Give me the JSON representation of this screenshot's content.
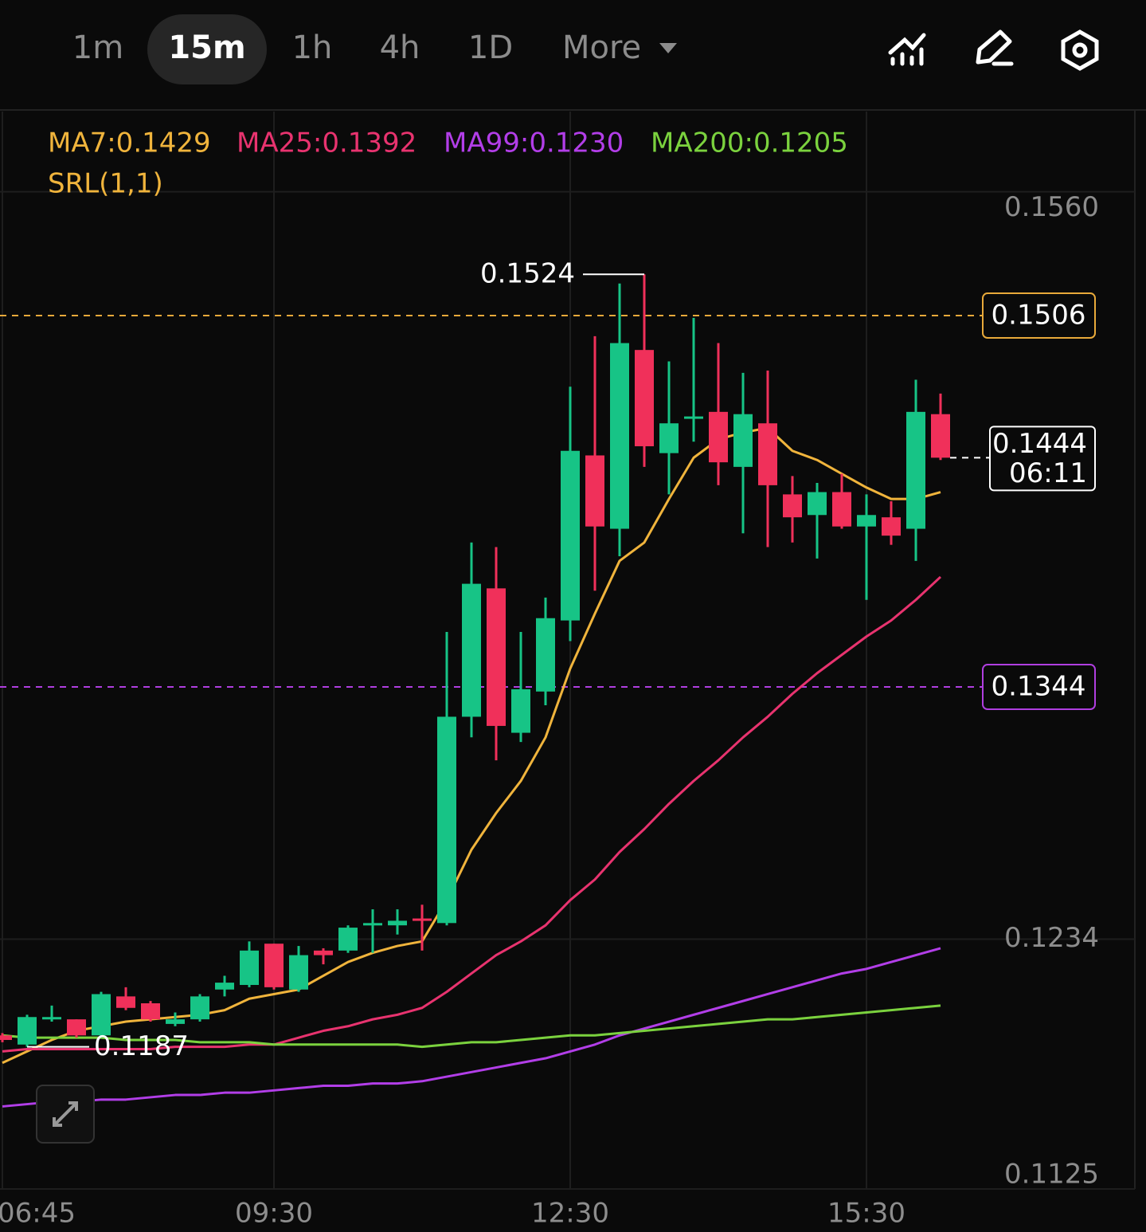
{
  "toolbar": {
    "tabs": [
      "1m",
      "15m",
      "1h",
      "4h",
      "1D",
      "More"
    ],
    "active": 1
  },
  "chart_data": {
    "type": "candlestick",
    "categories": [
      "06:45",
      null,
      null,
      null,
      null,
      null,
      null,
      null,
      null,
      null,
      null,
      "09:30",
      null,
      null,
      null,
      null,
      null,
      null,
      null,
      null,
      null,
      null,
      null,
      "12:30",
      null,
      null,
      null,
      null,
      null,
      null,
      null,
      null,
      null,
      null,
      null,
      "15:30",
      null,
      null,
      null
    ],
    "open": [
      0.1192,
      0.1188,
      0.1199,
      0.1199,
      0.1192,
      0.1209,
      0.1206,
      0.1197,
      0.1199,
      0.1212,
      0.1214,
      0.1232,
      0.1212,
      0.1229,
      0.1229,
      0.124,
      0.124,
      0.1243,
      0.1241,
      0.1331,
      0.1387,
      0.1324,
      0.1342,
      0.1373,
      0.1445,
      0.1413,
      0.1491,
      0.1446,
      0.1461,
      0.1464,
      0.144,
      0.1459,
      0.1428,
      0.1419,
      0.1429,
      0.1414,
      0.1418,
      0.1413,
      0.1463
    ],
    "high": [
      0.1193,
      0.1201,
      0.1205,
      0.1199,
      0.1211,
      0.1213,
      0.1207,
      0.1202,
      0.121,
      0.1218,
      0.1233,
      0.1232,
      0.1231,
      0.123,
      0.124,
      0.1247,
      0.1247,
      0.1249,
      0.1368,
      0.1407,
      0.1405,
      0.1368,
      0.1383,
      0.1475,
      0.1497,
      0.152,
      0.1524,
      0.1486,
      0.1505,
      0.1494,
      0.1481,
      0.1482,
      0.1436,
      0.1433,
      0.1437,
      0.1428,
      0.1425,
      0.1478,
      0.1472
    ],
    "low": [
      0.1189,
      0.1187,
      0.1198,
      0.1191,
      0.1191,
      0.1203,
      0.1198,
      0.1196,
      0.1198,
      0.1209,
      0.1213,
      0.1212,
      0.1211,
      0.1223,
      0.1228,
      0.1228,
      0.1236,
      0.1229,
      0.124,
      0.1322,
      0.1312,
      0.132,
      0.1336,
      0.1364,
      0.1386,
      0.1401,
      0.144,
      0.1428,
      0.1451,
      0.1432,
      0.1411,
      0.1405,
      0.1407,
      0.14,
      0.1413,
      0.1382,
      0.1406,
      0.1399,
      0.1443
    ],
    "close": [
      0.119,
      0.12,
      0.12,
      0.1192,
      0.121,
      0.1204,
      0.1199,
      0.1199,
      0.1209,
      0.1215,
      0.1229,
      0.1213,
      0.1227,
      0.1227,
      0.1239,
      0.1241,
      0.1242,
      0.1242,
      0.1331,
      0.1389,
      0.1327,
      0.1343,
      0.1374,
      0.1447,
      0.1414,
      0.1494,
      0.1449,
      0.1459,
      0.1462,
      0.1442,
      0.1463,
      0.1432,
      0.1418,
      0.1429,
      0.1414,
      0.1419,
      0.141,
      0.1464,
      0.1444
    ],
    "up_color": "#17c486",
    "down_color": "#f0305a",
    "series": [
      {
        "name": "MA7",
        "legend_label": "MA7:0.1429",
        "color": "#f0b43c",
        "values": [
          0.118,
          0.1185,
          0.119,
          0.1194,
          0.1196,
          0.1198,
          0.1199,
          0.12,
          0.1201,
          0.1203,
          0.1208,
          0.121,
          0.1212,
          0.1218,
          0.1224,
          0.1228,
          0.1231,
          0.1233,
          0.1251,
          0.1273,
          0.1289,
          0.1303,
          0.1322,
          0.1352,
          0.1376,
          0.1399,
          0.1407,
          0.1426,
          0.1444,
          0.1452,
          0.1455,
          0.1457,
          0.1447,
          0.1443,
          0.1437,
          0.1431,
          0.1426,
          0.1426,
          0.1429
        ]
      },
      {
        "name": "MA25",
        "legend_label": "MA25:0.1392",
        "color": "#e8336f",
        "values": [
          0.1185,
          0.1186,
          0.1186,
          0.1186,
          0.1186,
          0.1186,
          0.1186,
          0.1187,
          0.1187,
          0.1187,
          0.1188,
          0.1188,
          0.1191,
          0.1194,
          0.1196,
          0.1199,
          0.1201,
          0.1204,
          0.1211,
          0.1219,
          0.1227,
          0.1233,
          0.124,
          0.1251,
          0.126,
          0.1272,
          0.1282,
          0.1293,
          0.1303,
          0.1312,
          0.1322,
          0.1331,
          0.1341,
          0.135,
          0.1358,
          0.1366,
          0.1373,
          0.1382,
          0.1392
        ]
      },
      {
        "name": "MA99",
        "legend_label": "MA99:0.1230",
        "color": "#b23ee8",
        "values": [
          0.1161,
          0.1162,
          0.1163,
          0.1163,
          0.1164,
          0.1164,
          0.1165,
          0.1166,
          0.1166,
          0.1167,
          0.1167,
          0.1168,
          0.1169,
          0.117,
          0.117,
          0.1171,
          0.1171,
          0.1172,
          0.1174,
          0.1176,
          0.1178,
          0.118,
          0.1182,
          0.1185,
          0.1188,
          0.1192,
          0.1195,
          0.1198,
          0.1201,
          0.1204,
          0.1207,
          0.121,
          0.1213,
          0.1216,
          0.1219,
          0.1221,
          0.1224,
          0.1227,
          0.123
        ]
      },
      {
        "name": "MA200",
        "legend_label": "MA200:0.1205",
        "color": "#7bd23e",
        "values": [
          0.1192,
          0.1191,
          0.1191,
          0.1191,
          0.1191,
          0.119,
          0.119,
          0.119,
          0.1189,
          0.1189,
          0.1189,
          0.1188,
          0.1188,
          0.1188,
          0.1188,
          0.1188,
          0.1188,
          0.1187,
          0.1188,
          0.1189,
          0.1189,
          0.119,
          0.1191,
          0.1192,
          0.1192,
          0.1193,
          0.1194,
          0.1195,
          0.1196,
          0.1197,
          0.1198,
          0.1199,
          0.1199,
          0.12,
          0.1201,
          0.1202,
          0.1203,
          0.1204,
          0.1205
        ]
      }
    ],
    "indicator": "SRL(1,1)",
    "hlines": [
      {
        "value": 0.1506,
        "color": "#e8a93a"
      },
      {
        "value": 0.1344,
        "color": "#b03ee0"
      }
    ],
    "countdown": "06:11",
    "ylim": [
      0.1125,
      0.1595
    ],
    "yticks": [
      0.1125,
      0.1234,
      {
        "value": 0.156,
        "label": "0.1560"
      }
    ],
    "grid": true
  }
}
